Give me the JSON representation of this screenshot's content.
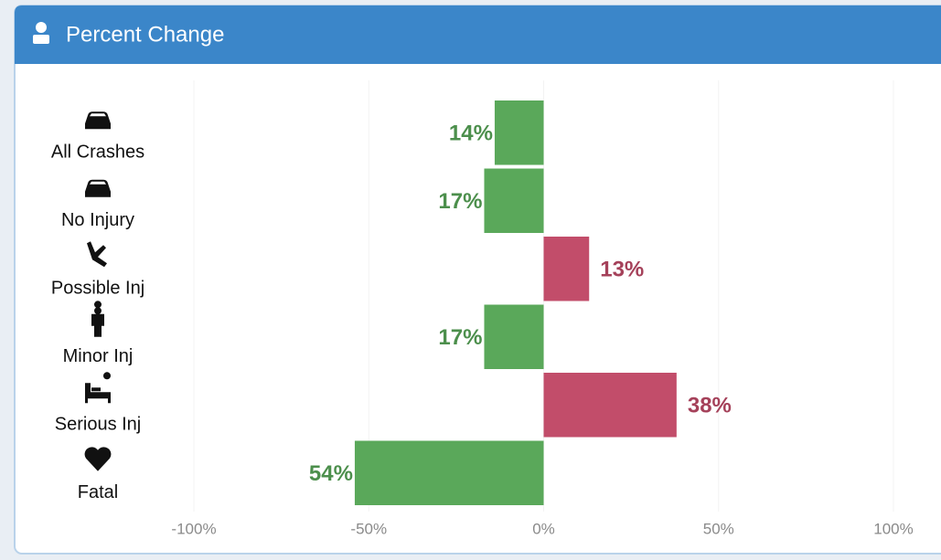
{
  "chart_data": {
    "type": "hbar",
    "title": "Percent Change",
    "categories": [
      "All Crashes",
      "No Injury",
      "Possible Inj",
      "Minor Inj",
      "Serious Inj",
      "Fatal"
    ],
    "values": [
      -14,
      -17,
      13,
      -17,
      38,
      -54
    ],
    "value_labels": [
      "14%",
      "17%",
      "13%",
      "17%",
      "38%",
      "54%"
    ],
    "colors": [
      "#5aa85a",
      "#5aa85a",
      "#c24d6a",
      "#5aa85a",
      "#c24d6a",
      "#5aa85a"
    ],
    "xlim": [
      -100,
      100
    ],
    "xticks": [
      {
        "value": -100,
        "label": "-100%"
      },
      {
        "value": -50,
        "label": "-50%"
      },
      {
        "value": 0,
        "label": "0%"
      },
      {
        "value": 50,
        "label": "50%"
      },
      {
        "value": 100,
        "label": "100%"
      }
    ]
  }
}
